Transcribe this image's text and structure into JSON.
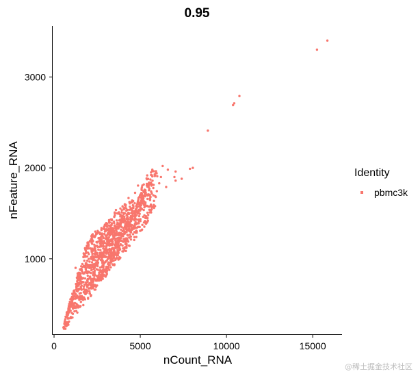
{
  "chart_data": {
    "type": "scatter",
    "title": "0.95",
    "xlabel": "nCount_RNA",
    "ylabel": "nFeature_RNA",
    "xlim": [
      -80,
      16700
    ],
    "ylim": [
      170,
      3560
    ],
    "xticks": [
      0,
      5000,
      10000,
      15000
    ],
    "yticks": [
      1000,
      2000,
      3000
    ],
    "xtick_labels": [
      "0",
      "5000",
      "10000",
      "15000"
    ],
    "ytick_labels": [
      "1000",
      "2000",
      "3000"
    ],
    "grid": false,
    "legend": {
      "title": "Identity",
      "placement": "right",
      "entries": [
        "pbmc3k"
      ]
    },
    "series": [
      {
        "name": "pbmc3k",
        "color": "#f8766d",
        "points": [
          [
            15850,
            3400
          ],
          [
            15250,
            3300
          ],
          [
            10750,
            2790
          ],
          [
            10450,
            2710
          ],
          [
            10380,
            2690
          ],
          [
            8920,
            2410
          ],
          [
            8050,
            2000
          ],
          [
            7880,
            1990
          ],
          [
            7400,
            1880
          ],
          [
            7050,
            1860
          ],
          [
            6980,
            1900
          ],
          [
            7050,
            1960
          ],
          [
            6600,
            1980
          ],
          [
            6300,
            2020
          ],
          [
            6200,
            1900
          ],
          [
            6500,
            1790
          ],
          [
            6100,
            1830
          ],
          [
            5950,
            1940
          ],
          [
            5700,
            1980
          ],
          [
            5600,
            1830
          ],
          [
            5900,
            1680
          ],
          [
            5500,
            1700
          ],
          [
            5300,
            1620
          ],
          [
            5250,
            1760
          ],
          [
            5100,
            1650
          ],
          [
            5000,
            1560
          ],
          [
            4750,
            1480
          ],
          [
            4600,
            1560
          ],
          [
            4500,
            1450
          ],
          [
            4300,
            1380
          ],
          [
            4450,
            1300
          ],
          [
            4100,
            1350
          ],
          [
            3900,
            1250
          ],
          [
            4250,
            1200
          ],
          [
            3600,
            1160
          ],
          [
            3400,
            1320
          ],
          [
            3050,
            1380
          ],
          [
            2800,
            1180
          ],
          [
            2950,
            1300
          ],
          [
            3500,
            1080
          ],
          [
            3200,
            1150
          ],
          [
            2600,
            1000
          ],
          [
            2450,
            1280
          ],
          [
            2200,
            1260
          ],
          [
            2000,
            1180
          ],
          [
            1850,
            1120
          ],
          [
            1700,
            1020
          ],
          [
            1800,
            920
          ],
          [
            1600,
            880
          ],
          [
            1450,
            780
          ],
          [
            1300,
            700
          ],
          [
            1250,
            900
          ],
          [
            1150,
            620
          ],
          [
            1000,
            560
          ],
          [
            900,
            480
          ],
          [
            800,
            420
          ],
          [
            700,
            360
          ],
          [
            620,
            300
          ],
          [
            580,
            230
          ],
          [
            700,
            260
          ],
          [
            2300,
            700
          ],
          [
            3000,
            860
          ],
          [
            3800,
            1000
          ],
          [
            2700,
            780
          ],
          [
            1900,
            640
          ],
          [
            1550,
            560
          ],
          [
            2150,
            600
          ],
          [
            3300,
            960
          ],
          [
            4200,
            1120
          ],
          [
            4800,
            1300
          ],
          [
            5400,
            1400
          ],
          [
            5800,
            1560
          ],
          [
            4000,
            1440
          ],
          [
            3700,
            1500
          ],
          [
            4100,
            1600
          ]
        ]
      }
    ]
  },
  "watermark": "@稀土掘金技术社区"
}
